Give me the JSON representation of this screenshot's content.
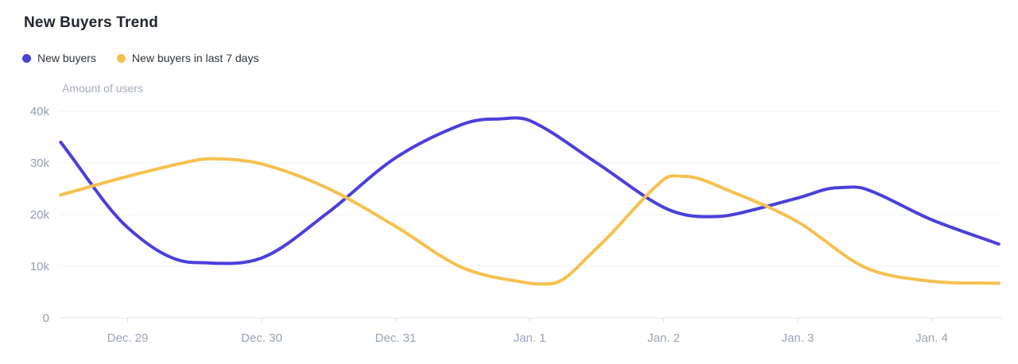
{
  "title": "New Buyers Trend",
  "legend": [
    {
      "label": "New buyers",
      "color": "#4a3fdb"
    },
    {
      "label": "New buyers in last 7 days",
      "color": "#f6c04f"
    }
  ],
  "colors": {
    "background": "#ffffff",
    "title_text": "#20242f",
    "legend_text": "#2f3440",
    "grid_line": "#eef0f5",
    "axis_line": "#dfe3ec",
    "tick_mark": "#d9dde8",
    "y_label_text": "#949cb0",
    "x_label_text": "#9aa2b8",
    "axis_title_text": "#a4abbd",
    "series_blue": "#4a3fdb",
    "series_yellow": "#f6c04f"
  },
  "chart_data": {
    "type": "line",
    "title": "New Buyers Trend",
    "xlabel": "",
    "ylabel": "Amount of users",
    "grid": "horizontal",
    "legend_position": "top-left",
    "x_unit": "days, 0 = Dec. 29",
    "x_range": [
      -0.5,
      6.5
    ],
    "ylim": [
      0,
      40000
    ],
    "y_ticks": [
      {
        "label": "40k",
        "value": 40000
      },
      {
        "label": "30k",
        "value": 30000
      },
      {
        "label": "20k",
        "value": 20000
      },
      {
        "label": "10k",
        "value": 10000
      },
      {
        "label": "0",
        "value": 0
      }
    ],
    "x_ticks": [
      {
        "label": "Dec. 29",
        "day": 0
      },
      {
        "label": "Dec. 30",
        "day": 1
      },
      {
        "label": "Dec. 31",
        "day": 2
      },
      {
        "label": "Jan. 1",
        "day": 3
      },
      {
        "label": "Jan. 2",
        "day": 4
      },
      {
        "label": "Jan. 3",
        "day": 5
      },
      {
        "label": "Jan. 4",
        "day": 6
      }
    ],
    "series": [
      {
        "name": "New buyers",
        "color": "#4a3fdb",
        "points": [
          [
            -0.5,
            34000
          ],
          [
            0,
            17500
          ],
          [
            0.5,
            10700
          ],
          [
            1,
            11600
          ],
          [
            1.5,
            20500
          ],
          [
            2,
            31000
          ],
          [
            2.5,
            37500
          ],
          [
            2.75,
            38500
          ],
          [
            3,
            38200
          ],
          [
            3.5,
            30000
          ],
          [
            4,
            21400
          ],
          [
            4.3,
            19600
          ],
          [
            4.5,
            19900
          ],
          [
            5,
            23200
          ],
          [
            5.3,
            25200
          ],
          [
            5.5,
            25000
          ],
          [
            6,
            19000
          ],
          [
            6.5,
            14300
          ]
        ]
      },
      {
        "name": "New buyers in last 7 days",
        "color": "#f6c04f",
        "points": [
          [
            -0.5,
            23800
          ],
          [
            0,
            27400
          ],
          [
            0.5,
            30500
          ],
          [
            0.62,
            30800
          ],
          [
            1,
            29800
          ],
          [
            1.5,
            25000
          ],
          [
            2,
            17700
          ],
          [
            2.5,
            9700
          ],
          [
            3,
            6700
          ],
          [
            3.15,
            6600
          ],
          [
            3.5,
            13500
          ],
          [
            4,
            26800
          ],
          [
            4.15,
            27400
          ],
          [
            4.5,
            24500
          ],
          [
            5,
            18600
          ],
          [
            5.5,
            9800
          ],
          [
            6,
            7100
          ],
          [
            6.5,
            6700
          ]
        ]
      }
    ]
  }
}
